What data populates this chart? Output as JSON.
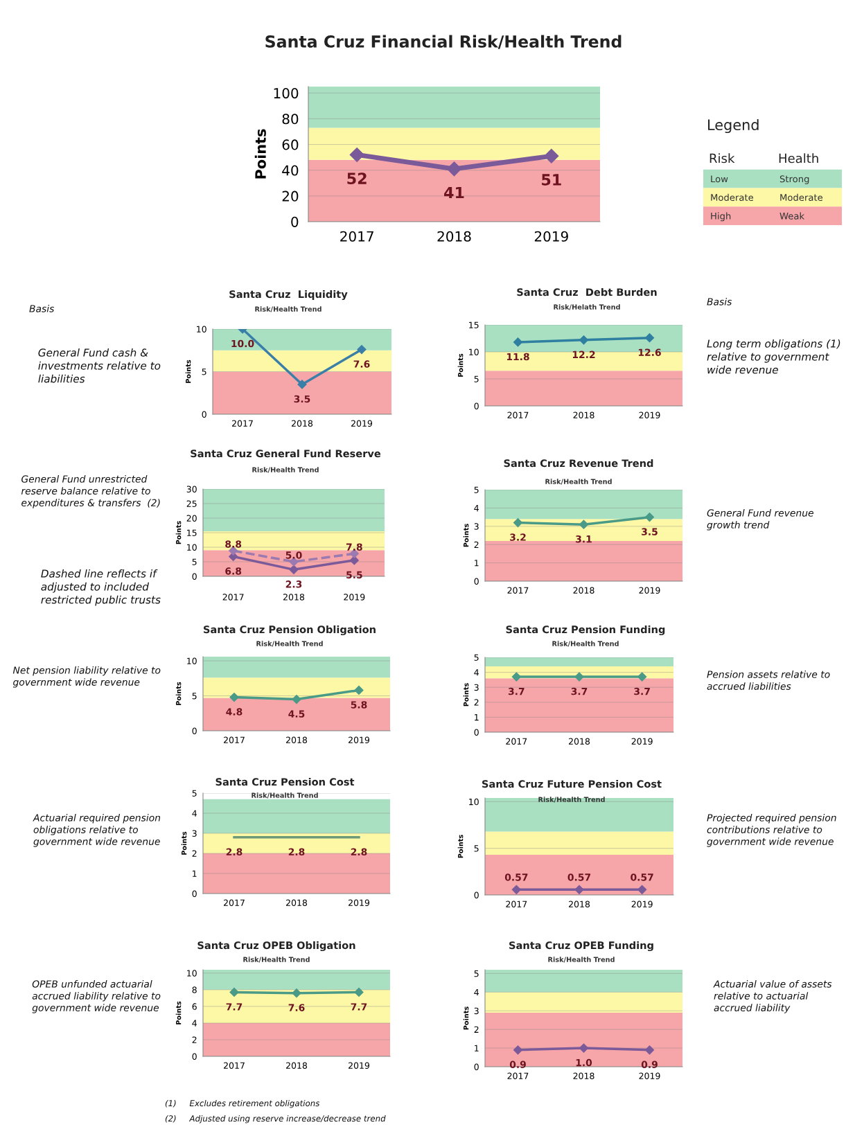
{
  "chart_data": [
    {
      "type": "line",
      "title": "Santa Cruz Financial Risk/Health Trend",
      "ylabel": "Points",
      "categories": [
        "2017",
        "2018",
        "2019"
      ],
      "series": [
        {
          "color": "#7b5a9a",
          "values": [
            52,
            41,
            51
          ]
        }
      ],
      "ylim": [
        0,
        105
      ],
      "yticks": [
        0,
        20,
        40,
        60,
        80,
        100
      ],
      "grid": "y",
      "marker": "diamond",
      "data_labels": true,
      "bands": [
        {
          "axis": "y",
          "from": 0,
          "to": 48,
          "color": "#f6a5a8"
        },
        {
          "axis": "y",
          "from": 48,
          "to": 73,
          "color": "#fdf8a6"
        },
        {
          "axis": "y",
          "from": 73,
          "to": 105,
          "color": "#a9e0c2"
        }
      ]
    },
    {
      "type": "other",
      "title": "Legend",
      "annotations": [
        "Risk",
        "Health",
        "Low",
        "Strong",
        "Moderate",
        "Moderate",
        "High",
        "Weak"
      ],
      "colors": [
        "#a9e0c2",
        "#fdf8a6",
        "#f6a5a8"
      ]
    },
    {
      "type": "line",
      "title": "Santa Cruz  Liquidity",
      "subtitle": "Risk/Health Trend",
      "ylabel": "Points",
      "categories": [
        "2017",
        "2018",
        "2019"
      ],
      "series": [
        {
          "color": "#3a7fa8",
          "values": [
            10,
            3.5,
            7.6
          ],
          "value_labels": [
            "10.0",
            "3.5",
            "7.6"
          ]
        }
      ],
      "ylim": [
        0,
        10
      ],
      "yticks": [
        0,
        5,
        10
      ],
      "grid": "y",
      "marker": "diamond",
      "bands": [
        {
          "axis": "y",
          "from": 0,
          "to": 5,
          "color": "#f6a5a8"
        },
        {
          "axis": "y",
          "from": 5,
          "to": 7.5,
          "color": "#fdf8a6"
        },
        {
          "axis": "y",
          "from": 7.5,
          "to": 10,
          "color": "#a9e0c2"
        }
      ],
      "annotations": [
        "Basis",
        "General Fund cash & investments relative to liabilities"
      ]
    },
    {
      "type": "line",
      "title": "Santa Cruz  Debt Burden",
      "subtitle": "Risk/Helath Trend",
      "ylabel": "Points",
      "categories": [
        "2017",
        "2018",
        "2019"
      ],
      "series": [
        {
          "color": "#2f7fa0",
          "values": [
            11.8,
            12.2,
            12.6
          ]
        }
      ],
      "ylim": [
        0,
        15
      ],
      "yticks": [
        0,
        5,
        10,
        15
      ],
      "grid": "y",
      "marker": "diamond",
      "data_labels": true,
      "bands": [
        {
          "axis": "y",
          "from": 0,
          "to": 6.5,
          "color": "#f6a5a8"
        },
        {
          "axis": "y",
          "from": 6.5,
          "to": 10,
          "color": "#fdf8a6"
        },
        {
          "axis": "y",
          "from": 10,
          "to": 15,
          "color": "#a9e0c2"
        }
      ],
      "annotations": [
        "Basis",
        "Long term obligations (1) relative to government wide revenue"
      ]
    },
    {
      "type": "line",
      "title": "Santa Cruz General Fund Reserve",
      "subtitle": "Risk/Health Trend",
      "ylabel": "Points",
      "categories": [
        "2017",
        "2018",
        "2019"
      ],
      "series": [
        {
          "color": "#7b5a9a",
          "values": [
            6.8,
            2.3,
            5.5
          ],
          "value_labels": [
            "6.8",
            "2.3",
            "5.5"
          ]
        },
        {
          "color": "#9a7ab0",
          "values": [
            8.8,
            5,
            7.8
          ],
          "value_labels": [
            "8.8",
            "5.0",
            "7.8"
          ],
          "line_style": "dashed"
        }
      ],
      "ylim": [
        0,
        30
      ],
      "yticks": [
        0,
        5,
        10,
        15,
        20,
        25,
        30
      ],
      "grid": "y",
      "marker": "diamond",
      "bands": [
        {
          "axis": "y",
          "from": 0,
          "to": 9,
          "color": "#f6a5a8"
        },
        {
          "axis": "y",
          "from": 9,
          "to": 15.5,
          "color": "#fdf8a6"
        },
        {
          "axis": "y",
          "from": 15.5,
          "to": 30,
          "color": "#a9e0c2"
        }
      ],
      "annotations": [
        "General Fund unrestricted reserve balance relative to expenditures & transfers  (2)",
        "Dashed line reflects if adjusted to included restricted public trusts"
      ]
    },
    {
      "type": "line",
      "title": "Santa Cruz Revenue Trend",
      "subtitle": "Risk/Health Trend",
      "ylabel": "Points",
      "categories": [
        "2017",
        "2018",
        "2019"
      ],
      "series": [
        {
          "color": "#4a9a88",
          "values": [
            3.2,
            3.1,
            3.5
          ]
        }
      ],
      "ylim": [
        0,
        5
      ],
      "yticks": [
        0,
        1,
        2,
        3,
        4,
        5
      ],
      "grid": "y",
      "marker": "diamond",
      "data_labels": true,
      "bands": [
        {
          "axis": "y",
          "from": 0,
          "to": 2.2,
          "color": "#f6a5a8"
        },
        {
          "axis": "y",
          "from": 2.2,
          "to": 3.4,
          "color": "#fdf8a6"
        },
        {
          "axis": "y",
          "from": 3.4,
          "to": 5,
          "color": "#a9e0c2"
        }
      ],
      "annotations": [
        "General Fund revenue growth trend"
      ]
    },
    {
      "type": "line",
      "title": "Santa Cruz Pension Obligation",
      "subtitle": "Risk/Health Trend",
      "ylabel": "Points",
      "categories": [
        "2017",
        "2018",
        "2019"
      ],
      "series": [
        {
          "color": "#4a9a88",
          "values": [
            4.8,
            4.5,
            5.8
          ]
        }
      ],
      "ylim": [
        0,
        10.6
      ],
      "yticks": [
        0,
        5,
        10
      ],
      "grid": "y",
      "marker": "diamond",
      "data_labels": true,
      "bands": [
        {
          "axis": "y",
          "from": 0,
          "to": 4.7,
          "color": "#f6a5a8"
        },
        {
          "axis": "y",
          "from": 4.7,
          "to": 7.6,
          "color": "#fdf8a6"
        },
        {
          "axis": "y",
          "from": 7.6,
          "to": 10.6,
          "color": "#a9e0c2"
        }
      ],
      "annotations": [
        "Net pension liability relative to government wide revenue"
      ]
    },
    {
      "type": "line",
      "title": "Santa Cruz Pension Funding",
      "subtitle": "Risk/Health Trend",
      "ylabel": "Points",
      "categories": [
        "2017",
        "2018",
        "2019"
      ],
      "series": [
        {
          "color": "#4a9a88",
          "values": [
            3.7,
            3.7,
            3.7
          ]
        }
      ],
      "ylim": [
        0,
        5
      ],
      "yticks": [
        0,
        1,
        2,
        3,
        4,
        5
      ],
      "grid": "y",
      "marker": "diamond",
      "data_labels": true,
      "bands": [
        {
          "axis": "y",
          "from": 0,
          "to": 3.6,
          "color": "#f6a5a8"
        },
        {
          "axis": "y",
          "from": 3.6,
          "to": 4.4,
          "color": "#fdf8a6"
        },
        {
          "axis": "y",
          "from": 4.4,
          "to": 5,
          "color": "#a9e0c2"
        }
      ],
      "annotations": [
        "Pension assets relative to accrued liabilities"
      ]
    },
    {
      "type": "line",
      "title": "Santa Cruz Pension Cost",
      "subtitle": "Risk/Health Trend",
      "ylabel": "Points",
      "categories": [
        "2017",
        "2018",
        "2019"
      ],
      "series": [
        {
          "color": "#6f9a7a",
          "values": [
            2.8,
            2.8,
            2.8
          ]
        }
      ],
      "ylim": [
        0,
        5
      ],
      "yticks": [
        0,
        1,
        2,
        3,
        4,
        5
      ],
      "grid": "y",
      "marker": "none",
      "data_labels": true,
      "bands": [
        {
          "axis": "y",
          "from": 0,
          "to": 2,
          "color": "#f6a5a8"
        },
        {
          "axis": "y",
          "from": 2,
          "to": 3,
          "color": "#fdf8a6"
        },
        {
          "axis": "y",
          "from": 3,
          "to": 4.7,
          "color": "#a9e0c2"
        }
      ],
      "annotations": [
        "Actuarial required pension obligations relative to government wide revenue"
      ]
    },
    {
      "type": "line",
      "title": "Santa Cruz Future Pension Cost",
      "subtitle": "Risk/Health Trend",
      "ylabel": "Points",
      "categories": [
        "2017",
        "2018",
        "2019"
      ],
      "series": [
        {
          "color": "#7b5a9a",
          "values": [
            0.57,
            0.57,
            0.57
          ]
        }
      ],
      "ylim": [
        0,
        10.4
      ],
      "yticks": [
        0,
        5,
        10
      ],
      "grid": "y",
      "marker": "diamond",
      "data_labels": true,
      "bands": [
        {
          "axis": "y",
          "from": 0,
          "to": 4.3,
          "color": "#f6a5a8"
        },
        {
          "axis": "y",
          "from": 4.3,
          "to": 6.8,
          "color": "#fdf8a6"
        },
        {
          "axis": "y",
          "from": 6.8,
          "to": 10.4,
          "color": "#a9e0c2"
        }
      ],
      "annotations": [
        "Projected required pension contributions relative to government wide revenue"
      ]
    },
    {
      "type": "line",
      "title": "Santa Cruz OPEB Obligation",
      "subtitle": "Risk/Health Trend",
      "ylabel": "Points",
      "categories": [
        "2017",
        "2018",
        "2019"
      ],
      "series": [
        {
          "color": "#4a9a88",
          "values": [
            7.7,
            7.6,
            7.7
          ]
        }
      ],
      "ylim": [
        0,
        10.4
      ],
      "yticks": [
        0,
        2,
        4,
        6,
        8,
        10
      ],
      "grid": "y",
      "marker": "diamond",
      "data_labels": true,
      "bands": [
        {
          "axis": "y",
          "from": 0,
          "to": 4,
          "color": "#f6a5a8"
        },
        {
          "axis": "y",
          "from": 4,
          "to": 8,
          "color": "#fdf8a6"
        },
        {
          "axis": "y",
          "from": 8,
          "to": 10.4,
          "color": "#a9e0c2"
        }
      ],
      "annotations": [
        "OPEB unfunded actuarial accrued liability relative to government wide revenue",
        "(1)     Excludes retirement obligations",
        "(2)     Adjusted using reserve increase/decrease trend"
      ]
    },
    {
      "type": "line",
      "title": "Santa Cruz OPEB Funding",
      "subtitle": "Risk/Health Trend",
      "ylabel": "Points",
      "categories": [
        "2017",
        "2018",
        "2019"
      ],
      "series": [
        {
          "color": "#7b5a9a",
          "values": [
            0.9,
            1,
            0.9
          ],
          "value_labels": [
            "0.9",
            "1.0",
            "0.9"
          ]
        }
      ],
      "ylim": [
        0,
        5.2
      ],
      "yticks": [
        0,
        1,
        2,
        3,
        4,
        5
      ],
      "grid": "y",
      "marker": "diamond",
      "bands": [
        {
          "axis": "y",
          "from": 0,
          "to": 2.9,
          "color": "#f6a5a8"
        },
        {
          "axis": "y",
          "from": 2.9,
          "to": 4,
          "color": "#fdf8a6"
        },
        {
          "axis": "y",
          "from": 4,
          "to": 5.2,
          "color": "#a9e0c2"
        }
      ],
      "annotations": [
        "Actuarial value of assets relative to actuarial accrued liability"
      ]
    }
  ]
}
